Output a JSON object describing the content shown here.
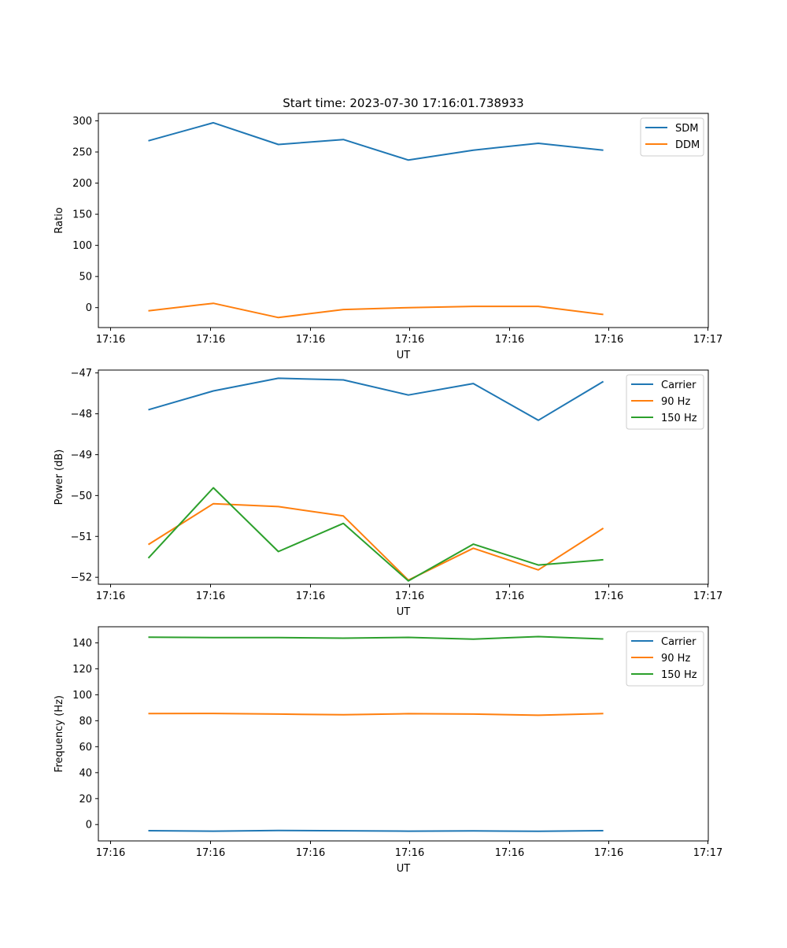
{
  "figure": {
    "title": "Start time: 2023-07-30 17:16:01.738933"
  },
  "chart_data": [
    {
      "type": "line",
      "title": "Start time: 2023-07-30 17:16:01.738933",
      "xlabel": "UT",
      "ylabel": "Ratio",
      "x_ticks": [
        "17:16",
        "17:16",
        "17:16",
        "17:16",
        "17:16",
        "17:16",
        "17:17"
      ],
      "y_ticks": [
        "0",
        "50",
        "100",
        "150",
        "200",
        "250",
        "300"
      ],
      "y_tick_values": [
        0,
        50,
        100,
        150,
        200,
        250,
        300
      ],
      "xlim": [
        0,
        6.1
      ],
      "ylim": [
        -32,
        312
      ],
      "x": [
        0.5,
        1.15,
        1.8,
        2.45,
        3.1,
        3.75,
        4.4,
        5.05
      ],
      "legend_position": "upper right",
      "series": [
        {
          "name": "SDM",
          "color": "#1f77b4",
          "values": [
            268,
            297,
            262,
            270,
            237,
            253,
            264,
            253
          ]
        },
        {
          "name": "DDM",
          "color": "#ff7f0e",
          "values": [
            -5,
            7,
            -16,
            -3,
            0,
            2,
            2,
            -11
          ]
        }
      ]
    },
    {
      "type": "line",
      "title": "",
      "xlabel": "UT",
      "ylabel": "Power (dB)",
      "x_ticks": [
        "17:16",
        "17:16",
        "17:16",
        "17:16",
        "17:16",
        "17:16",
        "17:17"
      ],
      "y_ticks": [
        "−52",
        "−51",
        "−50",
        "−49",
        "−48",
        "−47"
      ],
      "y_tick_values": [
        -52,
        -51,
        -50,
        -49,
        -48,
        -47
      ],
      "xlim": [
        0,
        6.1
      ],
      "ylim": [
        -52.17,
        -46.93
      ],
      "x": [
        0.5,
        1.15,
        1.8,
        2.45,
        3.1,
        3.75,
        4.4,
        5.05
      ],
      "legend_position": "upper right",
      "series": [
        {
          "name": "Carrier",
          "color": "#1f77b4",
          "values": [
            -47.9,
            -47.44,
            -47.13,
            -47.17,
            -47.54,
            -47.26,
            -48.16,
            -47.21
          ]
        },
        {
          "name": "90 Hz",
          "color": "#ff7f0e",
          "values": [
            -51.2,
            -50.2,
            -50.27,
            -50.5,
            -52.07,
            -51.29,
            -51.82,
            -50.8
          ]
        },
        {
          "name": "150 Hz",
          "color": "#2ca02c",
          "values": [
            -51.53,
            -49.81,
            -51.37,
            -50.68,
            -52.09,
            -51.19,
            -51.7,
            -51.57
          ]
        }
      ]
    },
    {
      "type": "line",
      "title": "",
      "xlabel": "UT",
      "ylabel": "Frequency (Hz)",
      "x_ticks": [
        "17:16",
        "17:16",
        "17:16",
        "17:16",
        "17:16",
        "17:16",
        "17:17"
      ],
      "y_ticks": [
        "0",
        "20",
        "40",
        "60",
        "80",
        "100",
        "120",
        "140"
      ],
      "y_tick_values": [
        0,
        20,
        40,
        60,
        80,
        100,
        120,
        140
      ],
      "xlim": [
        0,
        6.1
      ],
      "ylim": [
        -12.6,
        152.4
      ],
      "x": [
        0.5,
        1.15,
        1.8,
        2.45,
        3.1,
        3.75,
        4.4,
        5.05
      ],
      "legend_position": "upper right",
      "series": [
        {
          "name": "Carrier",
          "color": "#1f77b4",
          "values": [
            -4.7,
            -5.1,
            -4.6,
            -4.8,
            -5.1,
            -4.9,
            -5.2,
            -4.7
          ]
        },
        {
          "name": "90 Hz",
          "color": "#ff7f0e",
          "values": [
            85.5,
            85.6,
            85.1,
            84.6,
            85.4,
            85.1,
            84.2,
            85.5
          ]
        },
        {
          "name": "150 Hz",
          "color": "#2ca02c",
          "values": [
            144.4,
            144.0,
            144.1,
            143.6,
            144.2,
            142.9,
            144.8,
            143.0
          ]
        }
      ]
    }
  ]
}
